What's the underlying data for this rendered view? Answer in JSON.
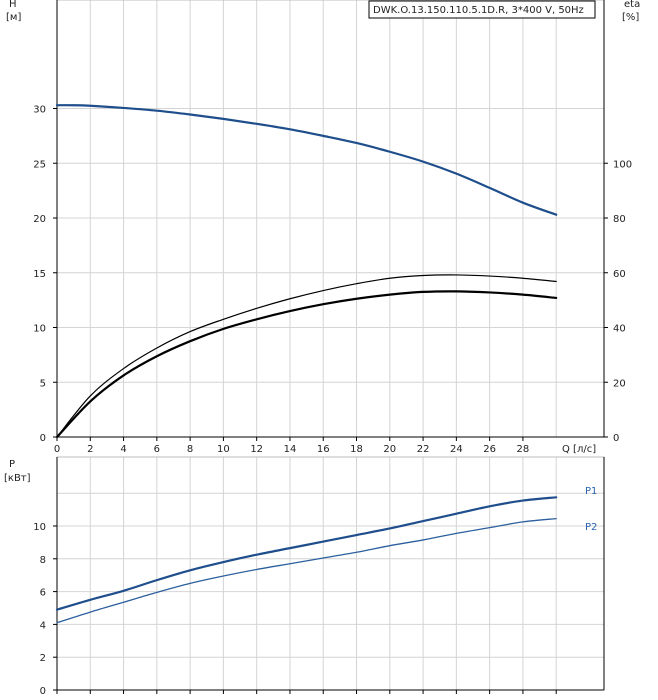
{
  "pump_label": "DWK.O.13.150.110.5.1D.R, 3*400 V, 50Hz",
  "chart_data": [
    {
      "type": "line",
      "title": "",
      "ylabel": "H",
      "ylabel_unit": "[м]",
      "y2label": "eta",
      "y2label_unit": "[%]",
      "xlabel": "Q [л/с]",
      "xlim": [
        0,
        30
      ],
      "ylim": [
        0,
        35
      ],
      "y2lim": [
        0,
        140
      ],
      "grid": true,
      "x_ticks": [
        0,
        2,
        4,
        6,
        8,
        10,
        12,
        14,
        16,
        18,
        20,
        22,
        24,
        26,
        28
      ],
      "y_ticks": [
        0,
        5,
        10,
        15,
        20,
        25,
        30
      ],
      "y2_ticks": [
        0,
        20,
        40,
        60,
        80,
        100
      ],
      "series": [
        {
          "axis": "left",
          "color": "#1f4e8c",
          "x": [
            0,
            1,
            2,
            4,
            6,
            8,
            10,
            12,
            14,
            16,
            18,
            20,
            22,
            24,
            26,
            28,
            30
          ],
          "y": [
            30.3,
            30.3,
            30.25,
            30.05,
            29.8,
            29.45,
            29.05,
            28.6,
            28.1,
            27.5,
            26.85,
            26.05,
            25.15,
            24.05,
            22.75,
            21.4,
            20.3
          ]
        },
        {
          "axis": "right",
          "color": "#000000",
          "x": [
            0,
            2,
            4,
            6,
            8,
            10,
            12,
            14,
            16,
            18,
            20,
            22,
            24,
            26,
            28,
            30
          ],
          "y": [
            0,
            13,
            22.5,
            29.5,
            35,
            39.5,
            43,
            46,
            48.5,
            50.5,
            52,
            53,
            53.2,
            52.8,
            52,
            50.8
          ]
        },
        {
          "axis": "right",
          "color": "#000000",
          "x": [
            0,
            2,
            4,
            6,
            8,
            10,
            12,
            14,
            16,
            18,
            20,
            22,
            24,
            26,
            28,
            30
          ],
          "y": [
            0,
            15,
            25,
            32.5,
            38.5,
            43,
            47,
            50.5,
            53.5,
            56,
            58,
            59,
            59.2,
            58.8,
            58,
            56.8
          ]
        }
      ]
    },
    {
      "type": "line",
      "title": "",
      "ylabel": "P",
      "ylabel_unit": "[кВт]",
      "xlim": [
        0,
        30
      ],
      "ylim": [
        0,
        12
      ],
      "grid": true,
      "y_ticks": [
        0,
        2,
        4,
        6,
        8,
        10
      ],
      "series": [
        {
          "name": "P1",
          "color": "#1f4e8c",
          "x": [
            0,
            2,
            4,
            6,
            8,
            10,
            12,
            14,
            16,
            18,
            20,
            22,
            24,
            26,
            28,
            30
          ],
          "y": [
            4.9,
            5.5,
            6.05,
            6.7,
            7.3,
            7.8,
            8.25,
            8.65,
            9.05,
            9.45,
            9.85,
            10.3,
            10.75,
            11.2,
            11.55,
            11.75
          ]
        },
        {
          "name": "P2",
          "color": "#2c5f9e",
          "x": [
            0,
            2,
            4,
            6,
            8,
            10,
            12,
            14,
            16,
            18,
            20,
            22,
            24,
            26,
            28,
            30
          ],
          "y": [
            4.1,
            4.75,
            5.35,
            5.95,
            6.5,
            6.95,
            7.35,
            7.7,
            8.05,
            8.4,
            8.8,
            9.15,
            9.55,
            9.9,
            10.25,
            10.45
          ]
        }
      ]
    }
  ]
}
